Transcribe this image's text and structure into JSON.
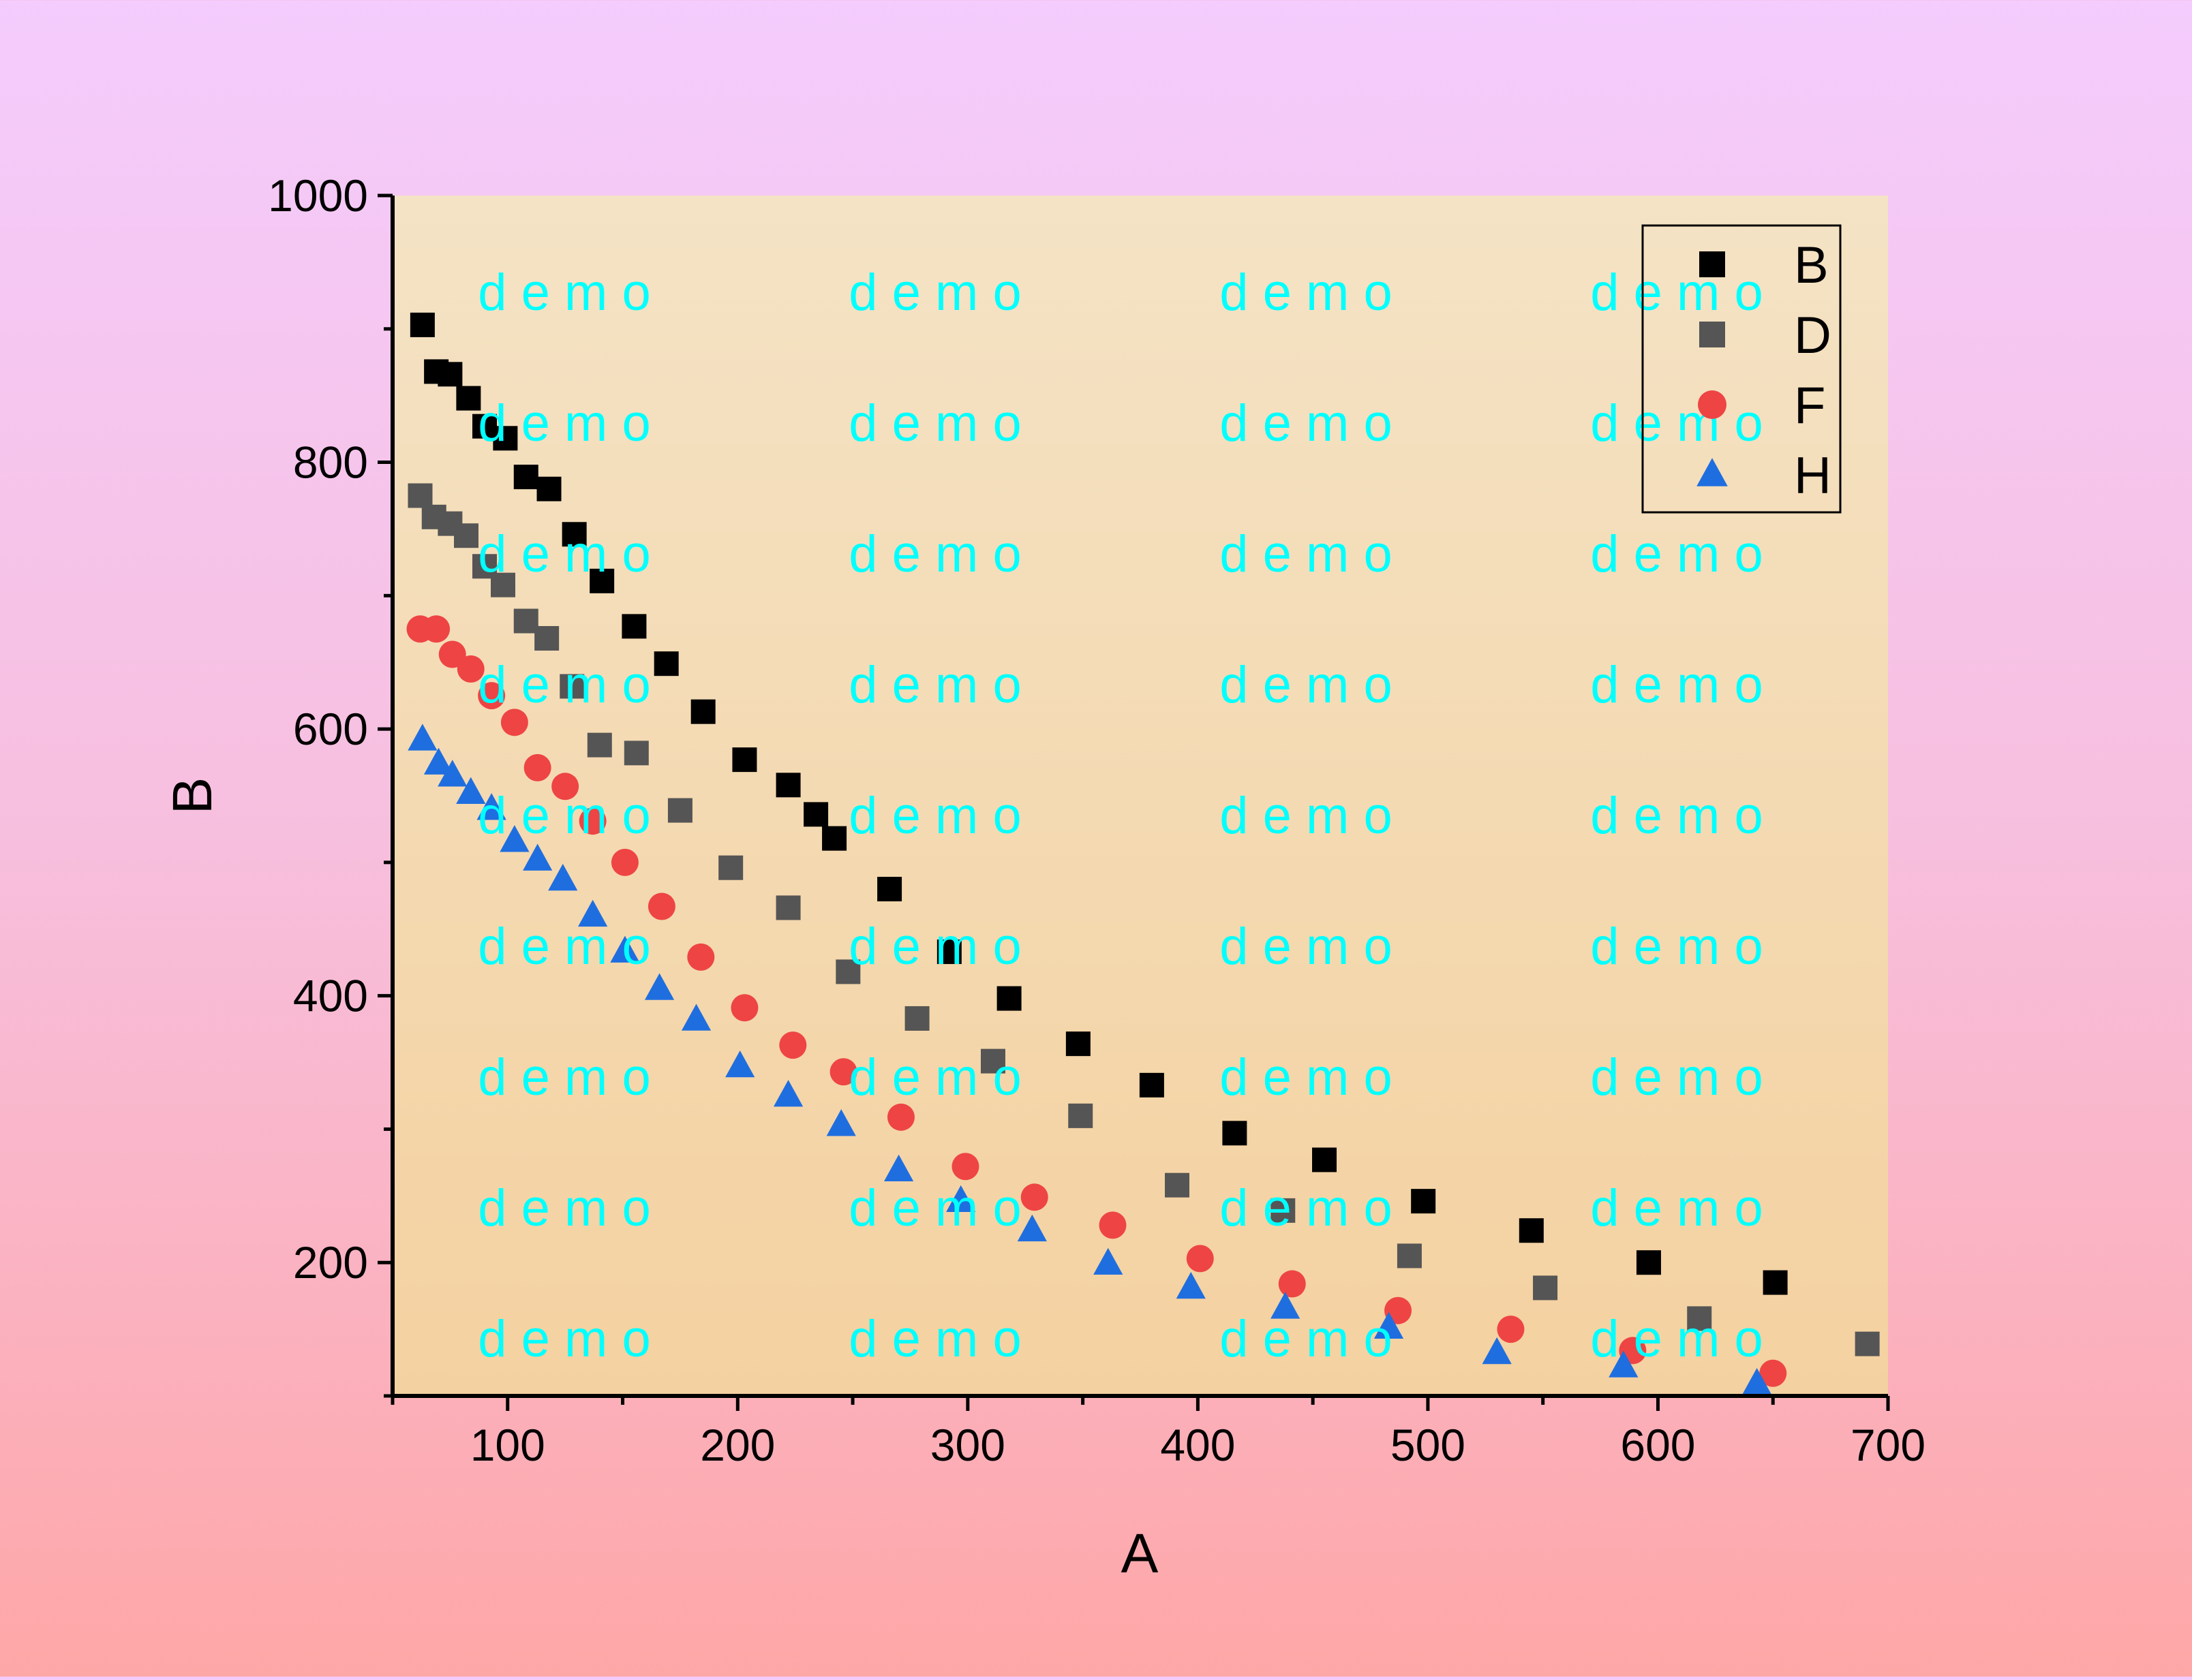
{
  "chart_data": {
    "type": "scatter",
    "xlabel": "A",
    "ylabel": "B",
    "xlim": [
      50,
      700
    ],
    "ylim": [
      100,
      1000
    ],
    "xticks": [
      100,
      200,
      300,
      400,
      500,
      600,
      700
    ],
    "yticks": [
      200,
      400,
      600,
      800,
      1000
    ],
    "grid": false,
    "legend_position": "top-right",
    "watermark": "d e m o",
    "colors": {
      "plot_background_top": "#f4e3c5",
      "plot_background_bottom": "#f4d1a0",
      "axis": "#000000",
      "watermark": "#00ffff"
    },
    "series": [
      {
        "name": "B",
        "marker": "square",
        "color": "#000000",
        "points": [
          [
            63,
            903
          ],
          [
            69,
            868
          ],
          [
            75,
            866
          ],
          [
            83,
            848
          ],
          [
            90,
            827
          ],
          [
            99,
            818
          ],
          [
            108,
            789
          ],
          [
            118,
            780
          ],
          [
            129,
            746
          ],
          [
            141,
            711
          ],
          [
            155,
            677
          ],
          [
            169,
            649
          ],
          [
            185,
            613
          ],
          [
            203,
            577
          ],
          [
            222,
            558
          ],
          [
            234,
            536
          ],
          [
            242,
            518
          ],
          [
            266,
            480
          ],
          [
            292,
            433
          ],
          [
            318,
            398
          ],
          [
            348,
            364
          ],
          [
            380,
            333
          ],
          [
            416,
            297
          ],
          [
            455,
            277
          ],
          [
            498,
            246
          ],
          [
            545,
            224
          ],
          [
            596,
            200
          ],
          [
            651,
            185
          ]
        ]
      },
      {
        "name": "D",
        "marker": "square",
        "color": "#555555",
        "points": [
          [
            62,
            775
          ],
          [
            68,
            759
          ],
          [
            75,
            754
          ],
          [
            82,
            745
          ],
          [
            90,
            722
          ],
          [
            98,
            708
          ],
          [
            108,
            681
          ],
          [
            117,
            668
          ],
          [
            128,
            632
          ],
          [
            140,
            588
          ],
          [
            156,
            582
          ],
          [
            175,
            539
          ],
          [
            197,
            496
          ],
          [
            222,
            466
          ],
          [
            248,
            418
          ],
          [
            278,
            383
          ],
          [
            311,
            351
          ],
          [
            349,
            310
          ],
          [
            391,
            258
          ],
          [
            437,
            239
          ],
          [
            492,
            205
          ],
          [
            551,
            181
          ],
          [
            618,
            158
          ],
          [
            691,
            139
          ]
        ]
      },
      {
        "name": "F",
        "marker": "circle",
        "color": "#ee4444",
        "points": [
          [
            62,
            675
          ],
          [
            69,
            675
          ],
          [
            76,
            656
          ],
          [
            84,
            645
          ],
          [
            93,
            625
          ],
          [
            103,
            605
          ],
          [
            113,
            571
          ],
          [
            125,
            557
          ],
          [
            137,
            531
          ],
          [
            151,
            500
          ],
          [
            167,
            467
          ],
          [
            184,
            429
          ],
          [
            203,
            391
          ],
          [
            224,
            363
          ],
          [
            246,
            343
          ],
          [
            271,
            309
          ],
          [
            299,
            272
          ],
          [
            329,
            249
          ],
          [
            363,
            228
          ],
          [
            401,
            203
          ],
          [
            441,
            184
          ],
          [
            487,
            164
          ],
          [
            536,
            150
          ],
          [
            589,
            134
          ],
          [
            650,
            117
          ]
        ]
      },
      {
        "name": "H",
        "marker": "triangle",
        "color": "#1f6ee0",
        "points": [
          [
            63,
            592
          ],
          [
            70,
            574
          ],
          [
            76,
            565
          ],
          [
            84,
            552
          ],
          [
            93,
            540
          ],
          [
            103,
            516
          ],
          [
            113,
            502
          ],
          [
            124,
            487
          ],
          [
            137,
            460
          ],
          [
            151,
            433
          ],
          [
            166,
            405
          ],
          [
            182,
            382
          ],
          [
            201,
            347
          ],
          [
            222,
            325
          ],
          [
            245,
            303
          ],
          [
            270,
            269
          ],
          [
            297,
            246
          ],
          [
            328,
            224
          ],
          [
            361,
            199
          ],
          [
            397,
            181
          ],
          [
            438,
            166
          ],
          [
            483,
            151
          ],
          [
            530,
            132
          ],
          [
            585,
            122
          ],
          [
            643,
            109
          ]
        ]
      }
    ]
  }
}
